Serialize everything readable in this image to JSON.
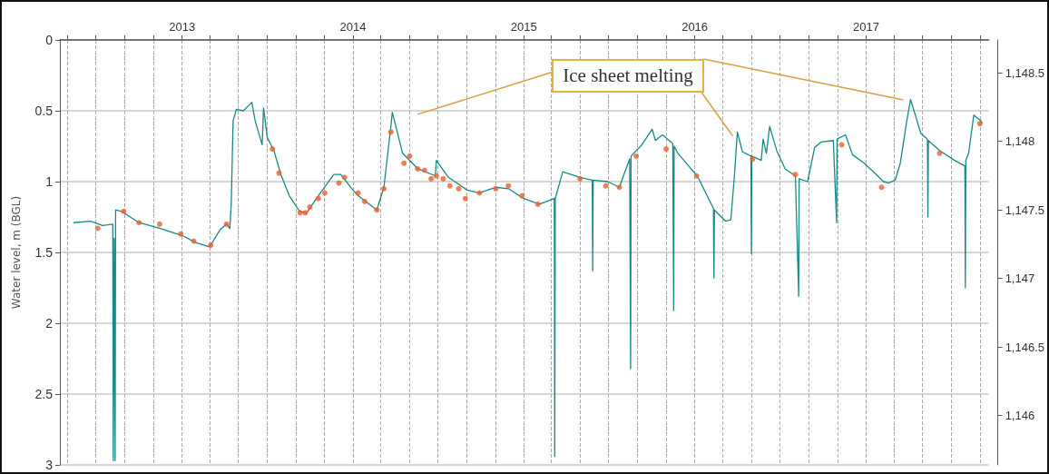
{
  "chart_data": {
    "type": "line",
    "ylabel": "Water level, m (BGL)",
    "annotations": [
      "Ice sheet melting"
    ],
    "xlim": [
      "2012-04-15",
      "2017-09-20"
    ],
    "xticks": [
      {
        "value": "2012-05",
        "label": null
      },
      {
        "value": "2012-07",
        "label": null
      },
      {
        "value": "2012-09",
        "label": null
      },
      {
        "value": "2012-11",
        "label": null
      },
      "2013",
      {
        "value": "2013-03",
        "label": null
      },
      {
        "value": "2013-05",
        "label": null
      },
      {
        "value": "2013-07",
        "label": null
      },
      {
        "value": "2013-09",
        "label": null
      },
      {
        "value": "2013-11",
        "label": null
      },
      "2014",
      {
        "value": "2014-03",
        "label": null
      },
      {
        "value": "2014-05",
        "label": null
      },
      {
        "value": "2014-07",
        "label": null
      },
      {
        "value": "2014-09",
        "label": null
      },
      {
        "value": "2014-11",
        "label": null
      },
      "2015",
      {
        "value": "2015-03",
        "label": null
      },
      {
        "value": "2015-05",
        "label": null
      },
      {
        "value": "2015-07",
        "label": null
      },
      {
        "value": "2015-09",
        "label": null
      },
      {
        "value": "2015-11",
        "label": null
      },
      "2016",
      {
        "value": "2016-03",
        "label": null
      },
      {
        "value": "2016-05",
        "label": null
      },
      {
        "value": "2016-07",
        "label": null
      },
      {
        "value": "2016-09",
        "label": null
      },
      {
        "value": "2016-11",
        "label": null
      },
      "2017",
      {
        "value": "2017-03",
        "label": null
      },
      {
        "value": "2017-05",
        "label": null
      },
      {
        "value": "2017-07",
        "label": null
      },
      {
        "value": "2017-09",
        "label": null
      }
    ],
    "ylim": [
      3,
      0
    ],
    "yticks": [
      0,
      0.5,
      1,
      1.5,
      2,
      2.5,
      3
    ],
    "y2lim": [
      1145.64,
      1148.74
    ],
    "y2ticks": [
      {
        "value": 1146,
        "label": "1,146"
      },
      {
        "value": 1146.5,
        "label": "1,146.5"
      },
      {
        "value": 1147,
        "label": "1,147"
      },
      {
        "value": 1147.5,
        "label": "1,147.5"
      },
      {
        "value": 1148,
        "label": "1,148"
      },
      {
        "value": 1148.5,
        "label": "1,148.5"
      }
    ],
    "grid": true,
    "series": [
      {
        "marker": "none",
        "color": "#168a87",
        "x": [
          "2012-05-14",
          "2012-06-20",
          "2012-07-15",
          "2012-08-06",
          "2012-08-07",
          "2012-08-09",
          "2012-08-11",
          "2012-08-12",
          "2012-08-25",
          "2012-10-01",
          "2012-11-14",
          "2013-01-01",
          "2013-01-30",
          "2013-03-01",
          "2013-03-12",
          "2013-03-23",
          "2013-04-06",
          "2013-04-13",
          "2013-04-16",
          "2013-04-20",
          "2013-04-27",
          "2013-05-12",
          "2013-05-30",
          "2013-06-06",
          "2013-06-21",
          "2013-06-24",
          "2013-07-02",
          "2013-07-16",
          "2013-07-31",
          "2013-08-18",
          "2013-09-09",
          "2013-09-24",
          "2013-10-19",
          "2013-11-21",
          "2013-12-06",
          "2014-01-01",
          "2014-01-12",
          "2014-02-21",
          "2014-03-08",
          "2014-03-23",
          "2014-03-26",
          "2014-04-17",
          "2014-05-20",
          "2014-06-26",
          "2014-06-28",
          "2014-07-24",
          "2014-09-02",
          "2014-09-28",
          "2014-11-03",
          "2014-11-29",
          "2015-01-01",
          "2015-02-03",
          "2015-03-07",
          "2015-03-08",
          "2015-03-09",
          "2015-03-25",
          "2015-05-01",
          "2015-05-27",
          "2015-05-28",
          "2015-05-29",
          "2015-06-29",
          "2015-07-24",
          "2015-08-15",
          "2015-08-17",
          "2015-08-18",
          "2015-09-10",
          "2015-10-02",
          "2015-10-09",
          "2015-10-24",
          "2015-11-15",
          "2015-11-17",
          "2015-11-18",
          "2015-11-26",
          "2016-01-01",
          "2016-01-08",
          "2016-02-10",
          "2016-02-11",
          "2016-02-12",
          "2016-03-07",
          "2016-03-18",
          "2016-03-25",
          "2016-04-01",
          "2016-04-12",
          "2016-04-30",
          "2016-05-01",
          "2016-05-02",
          "2016-05-22",
          "2016-05-26",
          "2016-06-02",
          "2016-06-09",
          "2016-06-24",
          "2016-07-12",
          "2016-08-03",
          "2016-08-10",
          "2016-08-11",
          "2016-08-29",
          "2016-09-13",
          "2016-09-27",
          "2016-10-23",
          "2016-10-30",
          "2016-10-31",
          "2016-11-18",
          "2016-12-03",
          "2016-12-28",
          "2017-01-23",
          "2017-02-07",
          "2017-02-18",
          "2017-03-04",
          "2017-03-15",
          "2017-03-29",
          "2017-04-06",
          "2017-04-28",
          "2017-05-12",
          "2017-05-13",
          "2017-05-14",
          "2017-06-07",
          "2017-07-09",
          "2017-07-31",
          "2017-08-01",
          "2017-08-02",
          "2017-08-08",
          "2017-08-19",
          "2017-09-03",
          "2017-09-06"
        ],
        "values": [
          1.29,
          1.28,
          1.31,
          1.3,
          2.97,
          1.4,
          2.97,
          1.2,
          1.21,
          1.29,
          1.33,
          1.38,
          1.43,
          1.46,
          1.4,
          1.34,
          1.3,
          1.33,
          1.16,
          0.57,
          0.49,
          0.5,
          0.44,
          0.57,
          0.74,
          0.48,
          0.69,
          0.78,
          0.95,
          1.1,
          1.21,
          1.22,
          1.1,
          0.95,
          0.95,
          1.06,
          1.1,
          1.2,
          1.04,
          0.61,
          0.51,
          0.8,
          0.91,
          0.96,
          0.85,
          0.97,
          1.06,
          1.08,
          1.04,
          1.05,
          1.12,
          1.16,
          1.12,
          2.94,
          1.12,
          0.93,
          0.97,
          0.99,
          1.63,
          0.99,
          1.0,
          1.04,
          0.84,
          2.32,
          0.82,
          0.74,
          0.63,
          0.71,
          0.67,
          0.73,
          1.91,
          0.75,
          0.8,
          0.94,
          0.97,
          1.19,
          1.68,
          1.2,
          1.28,
          1.27,
          0.99,
          0.65,
          0.79,
          0.82,
          1.51,
          0.82,
          0.85,
          0.7,
          0.8,
          0.61,
          0.78,
          0.91,
          0.96,
          1.81,
          0.98,
          1.0,
          0.76,
          0.72,
          0.71,
          1.29,
          0.7,
          0.67,
          0.81,
          0.87,
          0.95,
          1.0,
          1.01,
          0.99,
          0.87,
          0.57,
          0.42,
          0.66,
          0.7,
          1.25,
          0.71,
          0.78,
          0.85,
          0.89,
          1.75,
          0.85,
          0.8,
          0.53,
          0.57,
          0.59
        ]
      },
      {
        "type": "scatter",
        "marker": "circle",
        "color": "#e8602c",
        "x": [
          "2012-07-05",
          "2012-08-29",
          "2012-10-01",
          "2012-11-14",
          "2012-12-29",
          "2013-01-26",
          "2013-03-03",
          "2013-04-06",
          "2013-07-13",
          "2013-07-27",
          "2013-09-10",
          "2013-09-21",
          "2013-10-01",
          "2013-10-19",
          "2013-11-02",
          "2013-12-02",
          "2013-12-14",
          "2014-01-12",
          "2014-01-26",
          "2014-02-21",
          "2014-03-08",
          "2014-03-23",
          "2014-04-20",
          "2014-05-02",
          "2014-05-19",
          "2014-06-03",
          "2014-06-17",
          "2014-06-28",
          "2014-07-13",
          "2014-07-27",
          "2014-08-15",
          "2014-08-29",
          "2014-09-28",
          "2014-11-02",
          "2014-11-29",
          "2014-12-28",
          "2015-01-31",
          "2015-05-01",
          "2015-06-25",
          "2015-07-24",
          "2015-08-29",
          "2015-11-01",
          "2016-01-05",
          "2016-05-04",
          "2016-08-03",
          "2016-11-10",
          "2017-02-03",
          "2017-06-07",
          "2017-09-01"
        ],
        "values": [
          1.33,
          1.21,
          1.29,
          1.3,
          1.37,
          1.42,
          1.45,
          1.3,
          0.77,
          0.94,
          1.22,
          1.22,
          1.18,
          1.12,
          1.08,
          1.01,
          0.97,
          1.08,
          1.14,
          1.2,
          1.05,
          0.65,
          0.87,
          0.82,
          0.91,
          0.92,
          0.98,
          0.96,
          0.98,
          1.03,
          1.05,
          1.12,
          1.08,
          1.05,
          1.03,
          1.1,
          1.16,
          0.98,
          1.03,
          1.04,
          0.82,
          0.77,
          0.96,
          0.84,
          0.95,
          0.74,
          1.04,
          0.8,
          0.59
        ]
      }
    ]
  }
}
